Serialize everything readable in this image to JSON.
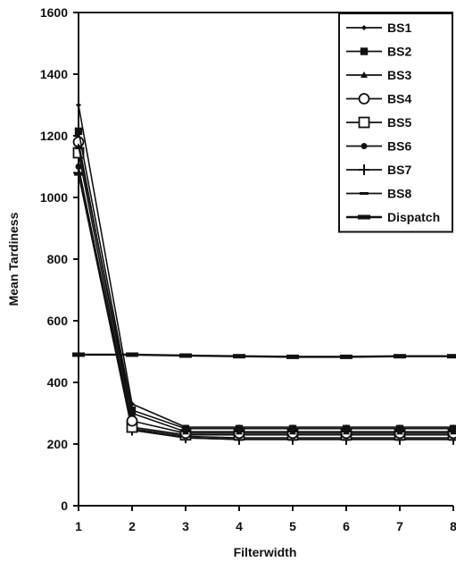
{
  "chart_data": {
    "type": "line",
    "title": "",
    "xlabel": "Filterwidth",
    "ylabel": "Mean Tardiness",
    "x": [
      1,
      2,
      3,
      4,
      5,
      6,
      7,
      8
    ],
    "xlim": [
      1,
      8
    ],
    "ylim": [
      0,
      1600
    ],
    "yticks": [
      0,
      200,
      400,
      600,
      800,
      1000,
      1200,
      1400,
      1600
    ],
    "xticks": [
      1,
      2,
      3,
      4,
      5,
      6,
      7,
      8
    ],
    "grid": false,
    "legend_position": "top-right",
    "series": [
      {
        "name": "BS1",
        "marker": "diamond",
        "values": [
          1300,
          330,
          255,
          255,
          255,
          255,
          255,
          255
        ]
      },
      {
        "name": "BS2",
        "marker": "square-filled",
        "values": [
          1215,
          310,
          250,
          250,
          250,
          250,
          250,
          250
        ]
      },
      {
        "name": "BS3",
        "marker": "triangle",
        "values": [
          1165,
          300,
          240,
          240,
          240,
          240,
          240,
          240
        ]
      },
      {
        "name": "BS4",
        "marker": "circle-open",
        "values": [
          1180,
          275,
          235,
          235,
          235,
          235,
          235,
          235
        ]
      },
      {
        "name": "BS5",
        "marker": "square-open",
        "values": [
          1145,
          255,
          230,
          230,
          230,
          230,
          230,
          230
        ]
      },
      {
        "name": "BS6",
        "marker": "circle-filled",
        "values": [
          1100,
          250,
          225,
          220,
          220,
          220,
          220,
          220
        ]
      },
      {
        "name": "BS7",
        "marker": "plus",
        "values": [
          1080,
          245,
          220,
          215,
          215,
          215,
          215,
          215
        ]
      },
      {
        "name": "BS8",
        "marker": "dash",
        "values": [
          1075,
          245,
          220,
          215,
          215,
          215,
          215,
          215
        ]
      },
      {
        "name": "Dispatch",
        "marker": "bar",
        "values": [
          490,
          490,
          487,
          485,
          483,
          483,
          485,
          485
        ]
      }
    ]
  }
}
